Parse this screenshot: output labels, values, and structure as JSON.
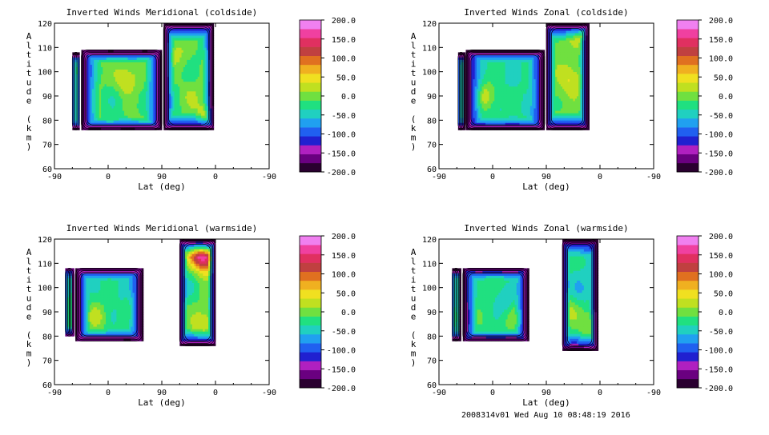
{
  "palette": [
    "#2a0030",
    "#6a0080",
    "#b020c0",
    "#2020d0",
    "#2060f0",
    "#20a0f0",
    "#20d0c0",
    "#20e080",
    "#70e040",
    "#c0e020",
    "#f0e020",
    "#f0b020",
    "#e07020",
    "#c04040",
    "#e03060",
    "#f040a0",
    "#f080f0"
  ],
  "contour_color": "#000000",
  "footer": "2008314v01 Wed Aug 10 08:48:19 2016",
  "chart_data": [
    {
      "type": "heatmap",
      "title": "Inverted Winds Meridional (coldside)",
      "xlabel": "Lat (deg)",
      "ylabel": "Altitude (km)",
      "x_ticks": [
        "-90",
        "0",
        "90",
        "0",
        "-90"
      ],
      "y_ticks": [
        "60",
        "70",
        "80",
        "90",
        "100",
        "110",
        "120"
      ],
      "ylim": [
        60,
        120
      ],
      "colorbar": {
        "min": -200,
        "max": 200,
        "ticks": [
          "200.0",
          "150.0",
          "100.0",
          "50.0",
          "0.0",
          "-50.0",
          "-100.0",
          "-150.0",
          "-200.0"
        ]
      },
      "data_regions": [
        {
          "x": [
            -60,
            -48
          ],
          "y": [
            76,
            108
          ],
          "mean": -40
        },
        {
          "x": [
            -45,
            90
          ],
          "y": [
            76,
            109
          ],
          "mean": -10,
          "peaks": [
            [
              30,
              97,
              40
            ],
            [
              10,
              88,
              -30
            ]
          ]
        },
        {
          "x": [
            93,
            177
          ],
          "y": [
            76,
            120
          ],
          "mean": -15,
          "peaks": [
            [
              115,
              108,
              20
            ],
            [
              140,
              90,
              10
            ],
            [
              170,
              82,
              60
            ]
          ]
        }
      ]
    },
    {
      "type": "heatmap",
      "title": "Inverted Winds Zonal (coldside)",
      "xlabel": "Lat (deg)",
      "ylabel": "Altitude (km)",
      "x_ticks": [
        "-90",
        "0",
        "90",
        "0",
        "-90"
      ],
      "y_ticks": [
        "60",
        "70",
        "80",
        "90",
        "100",
        "110",
        "120"
      ],
      "ylim": [
        60,
        120
      ],
      "colorbar": {
        "min": -200,
        "max": 200,
        "ticks": [
          "200.0",
          "150.0",
          "100.0",
          "50.0",
          "0.0",
          "-50.0",
          "-100.0",
          "-150.0",
          "-200.0"
        ]
      },
      "data_regions": [
        {
          "x": [
            -58,
            -48
          ],
          "y": [
            76,
            108
          ],
          "mean": -50
        },
        {
          "x": [
            -45,
            87
          ],
          "y": [
            76,
            109
          ],
          "mean": -35,
          "peaks": [
            [
              -10,
              90,
              20
            ],
            [
              80,
              90,
              10
            ]
          ]
        },
        {
          "x": [
            90,
            160
          ],
          "y": [
            76,
            120
          ],
          "mean": -5,
          "peaks": [
            [
              130,
              97,
              40
            ],
            [
              110,
              110,
              0
            ],
            [
              150,
              118,
              60
            ]
          ]
        }
      ]
    },
    {
      "type": "heatmap",
      "title": "Inverted Winds Meridional (warmside)",
      "xlabel": "Lat (deg)",
      "ylabel": "Altitude (km)",
      "x_ticks": [
        "-90",
        "0",
        "90",
        "0",
        "-90"
      ],
      "y_ticks": [
        "60",
        "70",
        "80",
        "90",
        "100",
        "110",
        "120"
      ],
      "ylim": [
        60,
        120
      ],
      "colorbar": {
        "min": -200,
        "max": 200,
        "ticks": [
          "200.0",
          "150.0",
          "100.0",
          "50.0",
          "0.0",
          "-50.0",
          "-100.0",
          "-150.0",
          "-200.0"
        ]
      },
      "data_regions": [
        {
          "x": [
            -72,
            -58
          ],
          "y": [
            80,
            108
          ],
          "mean": -30
        },
        {
          "x": [
            -55,
            57
          ],
          "y": [
            78,
            108
          ],
          "mean": -30,
          "peaks": [
            [
              -20,
              88,
              20
            ],
            [
              55,
              92,
              15
            ],
            [
              20,
              100,
              -40
            ]
          ]
        },
        {
          "x": [
            120,
            180
          ],
          "y": [
            76,
            120
          ],
          "mean": -10,
          "peaks": [
            [
              165,
              112,
              120
            ],
            [
              150,
              115,
              100
            ],
            [
              160,
              85,
              40
            ],
            [
              130,
              100,
              -40
            ]
          ]
        }
      ]
    },
    {
      "type": "heatmap",
      "title": "Inverted Winds Zonal (warmside)",
      "xlabel": "Lat (deg)",
      "ylabel": "Altitude (km)",
      "x_ticks": [
        "-90",
        "0",
        "90",
        "0",
        "-90"
      ],
      "y_ticks": [
        "60",
        "70",
        "80",
        "90",
        "100",
        "110",
        "120"
      ],
      "ylim": [
        60,
        120
      ],
      "colorbar": {
        "min": -200,
        "max": 200,
        "ticks": [
          "200.0",
          "150.0",
          "100.0",
          "50.0",
          "0.0",
          "-50.0",
          "-100.0",
          "-150.0",
          "-200.0"
        ]
      },
      "data_regions": [
        {
          "x": [
            -68,
            -55
          ],
          "y": [
            78,
            108
          ],
          "mean": -40
        },
        {
          "x": [
            -50,
            60
          ],
          "y": [
            78,
            108
          ],
          "mean": -20,
          "peaks": [
            [
              20,
              95,
              -60
            ],
            [
              40,
              88,
              5
            ]
          ]
        },
        {
          "x": [
            117,
            175
          ],
          "y": [
            74,
            120
          ],
          "mean": -30,
          "peaks": [
            [
              130,
              90,
              10
            ],
            [
              165,
              85,
              20
            ],
            [
              150,
              100,
              -60
            ]
          ]
        }
      ]
    }
  ]
}
